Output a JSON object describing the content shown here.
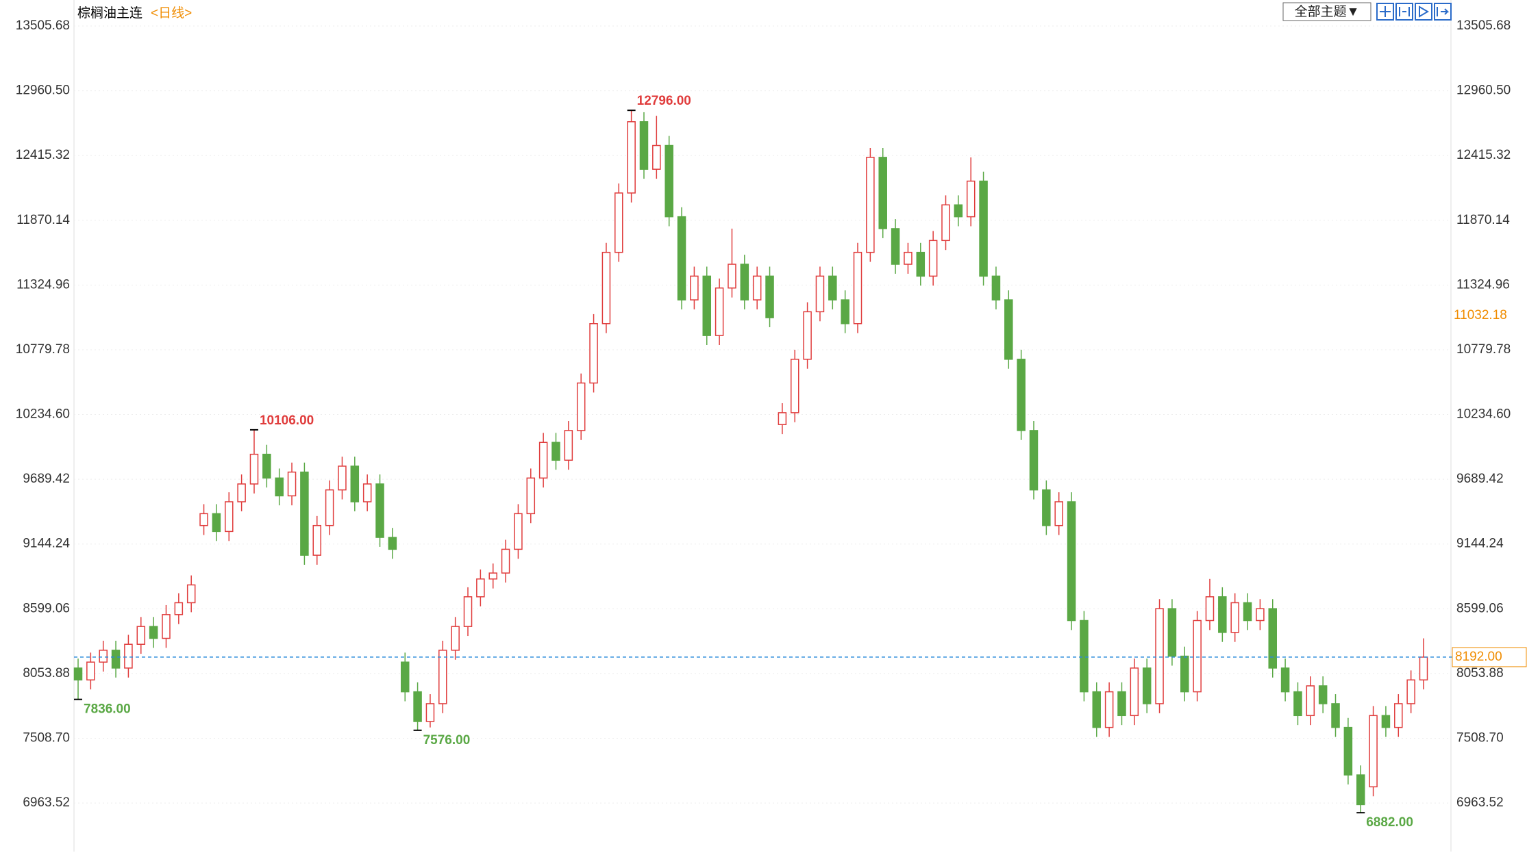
{
  "toolbar": {
    "theme_button": "全部主题▼"
  },
  "chart_data": {
    "type": "candlestick",
    "title": "棕榈油主连",
    "subtitle": "<日线>",
    "open": [
      8100,
      8000,
      8150,
      8250,
      8100,
      8300,
      8450,
      8350,
      8550,
      8650,
      9300,
      9400,
      9250,
      9500,
      9650,
      9900,
      9700,
      9550,
      9750,
      9050,
      9300,
      9600,
      9800,
      9500,
      9650,
      9200,
      8150,
      7900,
      7650,
      7800,
      8250,
      8450,
      8700,
      8850,
      8900,
      9100,
      9400,
      9700,
      10000,
      9850,
      10100,
      10500,
      11000,
      11600,
      12100,
      12700,
      12300,
      12500,
      11900,
      11200,
      11400,
      10900,
      11300,
      11500,
      11200,
      11400,
      10150,
      10250,
      10700,
      11100,
      11400,
      11200,
      11000,
      11600,
      12400,
      11800,
      11500,
      11600,
      11400,
      11700,
      12000,
      11900,
      12200,
      11400,
      11200,
      10700,
      10100,
      9600,
      9300,
      9500,
      8500,
      7900,
      7600,
      7900,
      7700,
      8100,
      7800,
      8600,
      8200,
      7900,
      8500,
      8700,
      8400,
      8650,
      8500,
      8600,
      8100,
      7900,
      7700,
      7950,
      7800,
      7600,
      7200,
      7100,
      7700,
      7600,
      7800,
      8000
    ],
    "high": [
      8180,
      8230,
      8330,
      8330,
      8380,
      8530,
      8530,
      8630,
      8730,
      8880,
      9480,
      9480,
      9580,
      9730,
      10106,
      9980,
      9780,
      9830,
      9830,
      9380,
      9680,
      9880,
      9880,
      9730,
      9730,
      9280,
      8230,
      7980,
      7880,
      8330,
      8530,
      8780,
      8930,
      8980,
      9180,
      9480,
      9780,
      10080,
      10080,
      10180,
      10580,
      11080,
      11680,
      12180,
      12796,
      12780,
      12750,
      12580,
      11980,
      11480,
      11480,
      11380,
      11800,
      11580,
      11480,
      11480,
      10330,
      10780,
      11180,
      11480,
      11480,
      11280,
      11680,
      12480,
      12480,
      11880,
      11680,
      11680,
      11780,
      12080,
      12080,
      12400,
      12280,
      11480,
      11280,
      10780,
      10180,
      9680,
      9580,
      9580,
      8580,
      7980,
      7980,
      7980,
      8180,
      8180,
      8680,
      8680,
      8280,
      8580,
      8850,
      8780,
      8730,
      8730,
      8680,
      8680,
      8180,
      7980,
      8030,
      8030,
      7880,
      7680,
      7280,
      7780,
      7780,
      7880,
      8080,
      8350
    ],
    "low": [
      7836,
      7920,
      8070,
      8020,
      8020,
      8220,
      8270,
      8270,
      8470,
      8570,
      9220,
      9170,
      9170,
      9420,
      9570,
      9620,
      9470,
      9470,
      8970,
      8970,
      9220,
      9520,
      9420,
      9420,
      9120,
      9020,
      7820,
      7576,
      7600,
      7720,
      8170,
      8370,
      8620,
      8770,
      8820,
      9020,
      9320,
      9620,
      9770,
      9770,
      10020,
      10420,
      10920,
      11520,
      12020,
      12220,
      12220,
      11820,
      11120,
      11120,
      10820,
      10820,
      11220,
      11120,
      11120,
      10970,
      10070,
      10170,
      10620,
      11020,
      11120,
      10920,
      10920,
      11520,
      11720,
      11420,
      11420,
      11320,
      11320,
      11620,
      11820,
      11820,
      11320,
      11120,
      10620,
      10020,
      9520,
      9220,
      9220,
      8420,
      7820,
      7520,
      7520,
      7620,
      7620,
      7720,
      7720,
      8120,
      7820,
      7820,
      8420,
      8320,
      8320,
      8420,
      8420,
      8020,
      7820,
      7620,
      7620,
      7720,
      7520,
      7120,
      6882,
      7020,
      7520,
      7520,
      7720,
      7920
    ],
    "close": [
      8000,
      8150,
      8250,
      8100,
      8300,
      8450,
      8350,
      8550,
      8650,
      8800,
      9400,
      9250,
      9500,
      9650,
      9900,
      9700,
      9550,
      9750,
      9050,
      9300,
      9600,
      9800,
      9500,
      9650,
      9200,
      9100,
      7900,
      7650,
      7800,
      8250,
      8450,
      8700,
      8850,
      8900,
      9100,
      9400,
      9700,
      10000,
      9850,
      10100,
      10500,
      11000,
      11600,
      12100,
      12700,
      12300,
      12500,
      11900,
      11200,
      11400,
      10900,
      11300,
      11500,
      11200,
      11400,
      11050,
      10250,
      10700,
      11100,
      11400,
      11200,
      11000,
      11600,
      12400,
      11800,
      11500,
      11600,
      11400,
      11700,
      12000,
      11900,
      12200,
      11400,
      11200,
      10700,
      10100,
      9600,
      9300,
      9500,
      8500,
      7900,
      7600,
      7900,
      7700,
      8100,
      7800,
      8600,
      8200,
      7900,
      8500,
      8700,
      8400,
      8650,
      8500,
      8600,
      8100,
      7900,
      7700,
      7950,
      7800,
      7600,
      7200,
      6950,
      7700,
      7600,
      7800,
      8000,
      8192
    ],
    "up_color": "#e03c3c",
    "down_color": "#5aa845",
    "ylim": [
      6595,
      13725
    ],
    "yticks": [
      13505.68,
      {
        "value": 12960.5,
        "label": "12960.50"
      },
      12415.32,
      11870.14,
      11324.96,
      10779.78,
      {
        "value": 10234.6,
        "label": "10234.60"
      },
      9689.42,
      9144.24,
      8599.06,
      8053.88,
      {
        "value": 7508.7,
        "label": "7508.70"
      },
      6963.52
    ],
    "grid": true,
    "annotations": [
      {
        "value": 7836,
        "label": "7836.00",
        "color": "#5aa845"
      },
      {
        "value": 10106,
        "label": "10106.00",
        "color": "#e03c3c"
      },
      {
        "value": 7576,
        "label": "7576.00",
        "color": "#5aa845"
      },
      {
        "value": 12796,
        "label": "12796.00",
        "color": "#e03c3c"
      },
      {
        "value": 6882,
        "label": "6882.00",
        "color": "#5aa845"
      }
    ],
    "last_price": {
      "value": 8192,
      "label": "8192.00"
    },
    "cursor_price": 11032.18
  }
}
